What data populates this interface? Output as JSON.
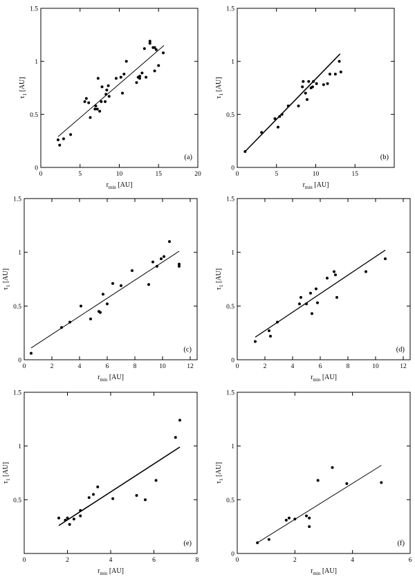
{
  "figure": {
    "xlabel_main": "r",
    "xlabel_sub": "min",
    "xlabel_unit": " [AU]",
    "ylabel_main": "τ",
    "ylabel_sub": "1",
    "ylabel_unit": " [AU]"
  },
  "chart_data": [
    {
      "type": "scatter",
      "panel_label": "(a)",
      "xlim": [
        0,
        20
      ],
      "ylim": [
        0,
        1.5
      ],
      "xticks": [
        0,
        5,
        10,
        15,
        20
      ],
      "yticks": [
        0,
        0.5,
        1,
        1.5
      ],
      "xtick_labels": [
        "0",
        "5",
        "10",
        "15",
        "20"
      ],
      "ytick_labels": [
        "0",
        "0.5",
        "1",
        "1.5"
      ],
      "grid": false,
      "points": [
        [
          2.2,
          0.26
        ],
        [
          2.4,
          0.21
        ],
        [
          2.9,
          0.27
        ],
        [
          3.8,
          0.31
        ],
        [
          5.6,
          0.62
        ],
        [
          5.8,
          0.65
        ],
        [
          6.1,
          0.61
        ],
        [
          6.3,
          0.47
        ],
        [
          6.9,
          0.55
        ],
        [
          7.0,
          0.58
        ],
        [
          7.2,
          0.55
        ],
        [
          7.3,
          0.84
        ],
        [
          7.5,
          0.53
        ],
        [
          7.7,
          0.62
        ],
        [
          7.8,
          0.76
        ],
        [
          8.2,
          0.62
        ],
        [
          8.3,
          0.69
        ],
        [
          8.4,
          0.73
        ],
        [
          8.6,
          0.77
        ],
        [
          8.7,
          0.67
        ],
        [
          9.6,
          0.84
        ],
        [
          10.2,
          0.85
        ],
        [
          10.4,
          0.7
        ],
        [
          10.6,
          0.88
        ],
        [
          10.9,
          1.0
        ],
        [
          12.2,
          0.8
        ],
        [
          12.4,
          0.85
        ],
        [
          12.6,
          0.84
        ],
        [
          12.6,
          0.86
        ],
        [
          12.9,
          0.89
        ],
        [
          13.2,
          1.12
        ],
        [
          13.4,
          0.85
        ],
        [
          13.9,
          1.19
        ],
        [
          13.9,
          1.17
        ],
        [
          14.3,
          1.13
        ],
        [
          14.5,
          1.13
        ],
        [
          14.5,
          0.91
        ],
        [
          14.7,
          1.11
        ],
        [
          15.0,
          0.96
        ],
        [
          15.6,
          1.08
        ]
      ],
      "fit": [
        [
          2.2,
          0.29
        ],
        [
          15.7,
          1.15
        ]
      ]
    },
    {
      "type": "scatter",
      "panel_label": "(b)",
      "xlim": [
        0,
        20
      ],
      "ylim": [
        0,
        1.5
      ],
      "xticks": [
        0,
        5,
        10,
        15
      ],
      "yticks": [
        0,
        0.5,
        1,
        1.5
      ],
      "xtick_labels": [
        "0",
        "5",
        "10",
        "15"
      ],
      "ytick_labels": [
        "0",
        "0.5",
        "1",
        "1.5"
      ],
      "grid": false,
      "points": [
        [
          1.0,
          0.15
        ],
        [
          3.1,
          0.33
        ],
        [
          4.8,
          0.46
        ],
        [
          5.2,
          0.38
        ],
        [
          5.4,
          0.48
        ],
        [
          5.7,
          0.5
        ],
        [
          6.5,
          0.58
        ],
        [
          7.8,
          0.58
        ],
        [
          8.3,
          0.76
        ],
        [
          8.4,
          0.81
        ],
        [
          8.7,
          0.7
        ],
        [
          8.9,
          0.64
        ],
        [
          9.1,
          0.81
        ],
        [
          9.4,
          0.75
        ],
        [
          9.6,
          0.76
        ],
        [
          9.7,
          0.81
        ],
        [
          10.1,
          0.79
        ],
        [
          11.0,
          0.78
        ],
        [
          11.5,
          0.79
        ],
        [
          11.8,
          0.88
        ],
        [
          12.5,
          0.88
        ],
        [
          13.0,
          1.0
        ],
        [
          13.2,
          0.9
        ]
      ],
      "fit": [
        [
          1.0,
          0.15
        ],
        [
          13.1,
          1.07
        ]
      ]
    },
    {
      "type": "scatter",
      "panel_label": "(c)",
      "xlim": [
        0,
        12.5
      ],
      "ylim": [
        0,
        1.5
      ],
      "xticks": [
        0,
        2,
        4,
        6,
        8,
        10,
        12
      ],
      "yticks": [
        0,
        0.5,
        1,
        1.5
      ],
      "xtick_labels": [
        "0",
        "2",
        "4",
        "6",
        "8",
        "10",
        "12"
      ],
      "ytick_labels": [
        "0",
        "0.5",
        "1",
        "1.5"
      ],
      "grid": false,
      "points": [
        [
          0.5,
          0.06
        ],
        [
          2.7,
          0.3
        ],
        [
          3.3,
          0.35
        ],
        [
          4.1,
          0.5
        ],
        [
          4.8,
          0.38
        ],
        [
          5.4,
          0.45
        ],
        [
          5.5,
          0.44
        ],
        [
          5.7,
          0.61
        ],
        [
          6.0,
          0.52
        ],
        [
          6.4,
          0.71
        ],
        [
          7.0,
          0.69
        ],
        [
          7.8,
          0.83
        ],
        [
          9.0,
          0.7
        ],
        [
          9.3,
          0.91
        ],
        [
          9.6,
          0.87
        ],
        [
          9.9,
          0.94
        ],
        [
          10.1,
          0.96
        ],
        [
          10.5,
          1.1
        ],
        [
          11.2,
          0.89
        ],
        [
          11.2,
          0.87
        ]
      ],
      "fit": [
        [
          0.5,
          0.11
        ],
        [
          11.2,
          1.01
        ]
      ]
    },
    {
      "type": "scatter",
      "panel_label": "(d)",
      "xlim": [
        0,
        12.5
      ],
      "ylim": [
        0,
        1.5
      ],
      "xticks": [
        0,
        2,
        4,
        6,
        8,
        10,
        12
      ],
      "yticks": [
        0,
        0.5,
        1,
        1.5
      ],
      "xtick_labels": [
        "0",
        "2",
        "4",
        "6",
        "8",
        "10",
        "12"
      ],
      "ytick_labels": [
        "0",
        "0.5",
        "1",
        "1.5"
      ],
      "grid": false,
      "points": [
        [
          1.3,
          0.17
        ],
        [
          2.3,
          0.27
        ],
        [
          2.4,
          0.22
        ],
        [
          2.9,
          0.35
        ],
        [
          4.5,
          0.52
        ],
        [
          4.6,
          0.58
        ],
        [
          5.0,
          0.52
        ],
        [
          5.3,
          0.62
        ],
        [
          5.4,
          0.43
        ],
        [
          5.7,
          0.66
        ],
        [
          5.8,
          0.53
        ],
        [
          6.5,
          0.76
        ],
        [
          7.0,
          0.82
        ],
        [
          7.1,
          0.79
        ],
        [
          7.2,
          0.58
        ],
        [
          9.3,
          0.82
        ],
        [
          10.7,
          0.94
        ]
      ],
      "fit": [
        [
          1.3,
          0.21
        ],
        [
          10.7,
          1.02
        ]
      ]
    },
    {
      "type": "scatter",
      "panel_label": "(e)",
      "xlim": [
        0,
        8
      ],
      "ylim": [
        0,
        1.5
      ],
      "xticks": [
        0,
        2,
        4,
        6,
        8
      ],
      "yticks": [
        0.5,
        1,
        1.5
      ],
      "xtick_labels": [
        "0",
        "2",
        "4",
        "6",
        "8"
      ],
      "ytick_labels": [
        "0.5",
        "1",
        "1.5"
      ],
      "grid": false,
      "points": [
        [
          1.6,
          0.33
        ],
        [
          1.9,
          0.31
        ],
        [
          2.0,
          0.33
        ],
        [
          2.1,
          0.27
        ],
        [
          2.3,
          0.32
        ],
        [
          2.6,
          0.35
        ],
        [
          2.6,
          0.4
        ],
        [
          3.0,
          0.52
        ],
        [
          3.2,
          0.55
        ],
        [
          3.4,
          0.62
        ],
        [
          4.1,
          0.51
        ],
        [
          5.2,
          0.54
        ],
        [
          5.6,
          0.5
        ],
        [
          6.1,
          0.68
        ],
        [
          7.0,
          1.08
        ],
        [
          7.2,
          1.24
        ]
      ],
      "fit": [
        [
          1.6,
          0.26
        ],
        [
          7.2,
          0.99
        ]
      ]
    },
    {
      "type": "scatter",
      "panel_label": "(f)",
      "xlim": [
        0,
        6
      ],
      "ylim": [
        0,
        1.5
      ],
      "xticks": [
        0,
        2,
        4,
        6
      ],
      "yticks": [
        0,
        0.5,
        1,
        1.5
      ],
      "xtick_labels": [
        "0",
        "2",
        "4",
        "6"
      ],
      "ytick_labels": [
        "0",
        "0.5",
        "1",
        "1.5"
      ],
      "grid": false,
      "points": [
        [
          0.7,
          0.1
        ],
        [
          1.1,
          0.13
        ],
        [
          1.7,
          0.31
        ],
        [
          1.8,
          0.33
        ],
        [
          2.0,
          0.32
        ],
        [
          2.4,
          0.35
        ],
        [
          2.5,
          0.25
        ],
        [
          2.5,
          0.33
        ],
        [
          2.8,
          0.68
        ],
        [
          3.3,
          0.8
        ],
        [
          3.8,
          0.65
        ],
        [
          5.0,
          0.66
        ]
      ],
      "fit": [
        [
          0.7,
          0.1
        ],
        [
          5.0,
          0.82
        ]
      ]
    }
  ]
}
